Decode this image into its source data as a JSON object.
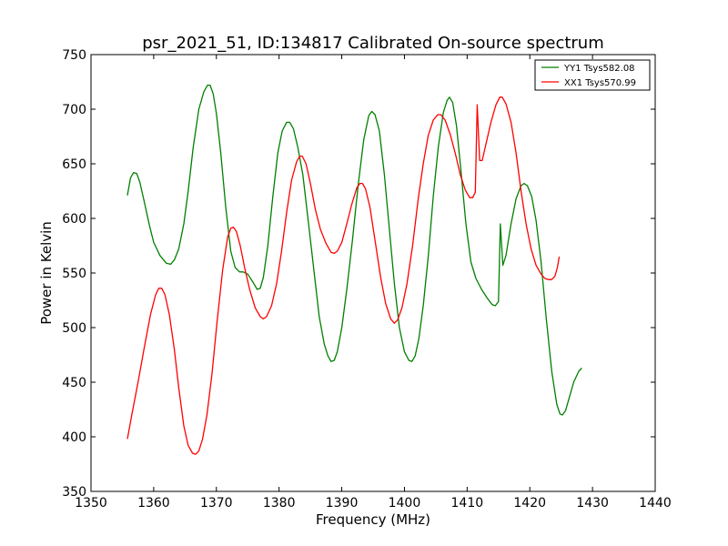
{
  "chart_data": {
    "type": "line",
    "title": "psr_2021_51, ID:134817 Calibrated On-source spectrum",
    "xlabel": "Frequency (MHz)",
    "ylabel": "Power in Kelvin",
    "xlim": [
      1350,
      1440
    ],
    "ylim": [
      350,
      750
    ],
    "xticks": [
      1350,
      1360,
      1370,
      1380,
      1390,
      1400,
      1410,
      1420,
      1430,
      1440
    ],
    "yticks": [
      350,
      400,
      450,
      500,
      550,
      600,
      650,
      700,
      750
    ],
    "grid": false,
    "legend_position": "top-right",
    "series": [
      {
        "name": "YY1 Tsys582.08",
        "color": "#008000",
        "points": [
          [
            1355.8,
            621
          ],
          [
            1356.3,
            637
          ],
          [
            1356.8,
            642
          ],
          [
            1357.3,
            641
          ],
          [
            1357.8,
            633
          ],
          [
            1358.5,
            615
          ],
          [
            1359.3,
            594
          ],
          [
            1360.0,
            578
          ],
          [
            1361.0,
            566
          ],
          [
            1362.0,
            559
          ],
          [
            1362.7,
            558
          ],
          [
            1363.3,
            562
          ],
          [
            1364.0,
            572
          ],
          [
            1364.8,
            595
          ],
          [
            1365.5,
            625
          ],
          [
            1366.3,
            665
          ],
          [
            1367.2,
            700
          ],
          [
            1368.0,
            716
          ],
          [
            1368.6,
            722
          ],
          [
            1369.0,
            722
          ],
          [
            1369.5,
            714
          ],
          [
            1370.0,
            696
          ],
          [
            1370.7,
            660
          ],
          [
            1371.5,
            610
          ],
          [
            1372.3,
            570
          ],
          [
            1373.0,
            555
          ],
          [
            1373.7,
            551
          ],
          [
            1374.3,
            551
          ],
          [
            1375.0,
            549
          ],
          [
            1375.8,
            542
          ],
          [
            1376.5,
            535
          ],
          [
            1377.0,
            536
          ],
          [
            1377.5,
            546
          ],
          [
            1378.2,
            575
          ],
          [
            1379.0,
            620
          ],
          [
            1379.8,
            660
          ],
          [
            1380.5,
            680
          ],
          [
            1381.2,
            688
          ],
          [
            1381.7,
            688
          ],
          [
            1382.3,
            682
          ],
          [
            1383.0,
            665
          ],
          [
            1383.8,
            640
          ],
          [
            1384.6,
            600
          ],
          [
            1385.5,
            555
          ],
          [
            1386.4,
            510
          ],
          [
            1387.2,
            485
          ],
          [
            1387.8,
            474
          ],
          [
            1388.3,
            469
          ],
          [
            1388.8,
            470
          ],
          [
            1389.3,
            478
          ],
          [
            1390.0,
            500
          ],
          [
            1390.8,
            535
          ],
          [
            1391.7,
            580
          ],
          [
            1392.6,
            630
          ],
          [
            1393.5,
            672
          ],
          [
            1394.3,
            694
          ],
          [
            1394.8,
            698
          ],
          [
            1395.3,
            695
          ],
          [
            1396.0,
            680
          ],
          [
            1396.8,
            640
          ],
          [
            1397.6,
            590
          ],
          [
            1398.4,
            540
          ],
          [
            1399.2,
            500
          ],
          [
            1400.0,
            478
          ],
          [
            1400.7,
            470
          ],
          [
            1401.2,
            469
          ],
          [
            1401.7,
            474
          ],
          [
            1402.3,
            490
          ],
          [
            1403.0,
            520
          ],
          [
            1403.8,
            565
          ],
          [
            1404.6,
            620
          ],
          [
            1405.4,
            665
          ],
          [
            1406.2,
            697
          ],
          [
            1406.8,
            708
          ],
          [
            1407.2,
            711
          ],
          [
            1407.7,
            706
          ],
          [
            1408.3,
            685
          ],
          [
            1409.0,
            645
          ],
          [
            1409.8,
            595
          ],
          [
            1410.6,
            560
          ],
          [
            1411.4,
            545
          ],
          [
            1412.3,
            535
          ],
          [
            1413.2,
            527
          ],
          [
            1414.0,
            521
          ],
          [
            1414.5,
            520
          ],
          [
            1415.0,
            524
          ],
          [
            1415.3,
            595
          ],
          [
            1415.7,
            557
          ],
          [
            1416.2,
            566
          ],
          [
            1417.0,
            595
          ],
          [
            1417.8,
            618
          ],
          [
            1418.6,
            630
          ],
          [
            1419.1,
            632
          ],
          [
            1419.6,
            630
          ],
          [
            1420.3,
            620
          ],
          [
            1421.0,
            598
          ],
          [
            1421.8,
            560
          ],
          [
            1422.6,
            510
          ],
          [
            1423.5,
            460
          ],
          [
            1424.3,
            430
          ],
          [
            1424.8,
            421
          ],
          [
            1425.2,
            420
          ],
          [
            1425.7,
            424
          ],
          [
            1426.3,
            436
          ],
          [
            1427.0,
            450
          ],
          [
            1427.8,
            460
          ],
          [
            1428.3,
            463
          ]
        ]
      },
      {
        "name": "XX1 Tsys570.99",
        "color": "#ff0000",
        "points": [
          [
            1355.8,
            398
          ],
          [
            1356.5,
            420
          ],
          [
            1357.5,
            450
          ],
          [
            1358.5,
            482
          ],
          [
            1359.5,
            512
          ],
          [
            1360.3,
            530
          ],
          [
            1360.8,
            536
          ],
          [
            1361.3,
            536
          ],
          [
            1361.8,
            530
          ],
          [
            1362.5,
            512
          ],
          [
            1363.3,
            480
          ],
          [
            1364.0,
            445
          ],
          [
            1364.8,
            410
          ],
          [
            1365.5,
            392
          ],
          [
            1366.2,
            385
          ],
          [
            1366.7,
            384
          ],
          [
            1367.2,
            387
          ],
          [
            1367.8,
            398
          ],
          [
            1368.5,
            420
          ],
          [
            1369.3,
            458
          ],
          [
            1370.1,
            505
          ],
          [
            1371.0,
            553
          ],
          [
            1371.8,
            583
          ],
          [
            1372.3,
            591
          ],
          [
            1372.7,
            592
          ],
          [
            1373.2,
            588
          ],
          [
            1373.8,
            575
          ],
          [
            1374.5,
            555
          ],
          [
            1375.3,
            535
          ],
          [
            1376.2,
            518
          ],
          [
            1377.0,
            510
          ],
          [
            1377.5,
            508
          ],
          [
            1378.0,
            510
          ],
          [
            1378.8,
            520
          ],
          [
            1379.6,
            540
          ],
          [
            1380.4,
            570
          ],
          [
            1381.2,
            605
          ],
          [
            1382.0,
            635
          ],
          [
            1382.8,
            652
          ],
          [
            1383.3,
            657
          ],
          [
            1383.7,
            657
          ],
          [
            1384.3,
            650
          ],
          [
            1385.0,
            632
          ],
          [
            1385.8,
            608
          ],
          [
            1386.6,
            590
          ],
          [
            1387.5,
            577
          ],
          [
            1388.3,
            569
          ],
          [
            1388.8,
            568
          ],
          [
            1389.3,
            570
          ],
          [
            1390.0,
            578
          ],
          [
            1390.8,
            595
          ],
          [
            1391.6,
            613
          ],
          [
            1392.4,
            628
          ],
          [
            1392.9,
            632
          ],
          [
            1393.3,
            632
          ],
          [
            1393.8,
            627
          ],
          [
            1394.5,
            610
          ],
          [
            1395.3,
            580
          ],
          [
            1396.2,
            546
          ],
          [
            1397.0,
            522
          ],
          [
            1397.8,
            508
          ],
          [
            1398.4,
            504
          ],
          [
            1398.9,
            507
          ],
          [
            1399.6,
            518
          ],
          [
            1400.4,
            540
          ],
          [
            1401.3,
            575
          ],
          [
            1402.2,
            618
          ],
          [
            1403.0,
            650
          ],
          [
            1403.8,
            676
          ],
          [
            1404.6,
            690
          ],
          [
            1405.3,
            695
          ],
          [
            1405.8,
            695
          ],
          [
            1406.5,
            690
          ],
          [
            1407.3,
            677
          ],
          [
            1408.1,
            660
          ],
          [
            1408.9,
            640
          ],
          [
            1409.7,
            626
          ],
          [
            1410.4,
            619
          ],
          [
            1410.9,
            619
          ],
          [
            1411.3,
            624
          ],
          [
            1411.6,
            704
          ],
          [
            1412.0,
            653
          ],
          [
            1412.4,
            653
          ],
          [
            1413.0,
            668
          ],
          [
            1413.8,
            688
          ],
          [
            1414.6,
            704
          ],
          [
            1415.2,
            711
          ],
          [
            1415.6,
            711
          ],
          [
            1416.2,
            705
          ],
          [
            1417.0,
            688
          ],
          [
            1417.8,
            660
          ],
          [
            1418.6,
            625
          ],
          [
            1419.4,
            595
          ],
          [
            1420.2,
            572
          ],
          [
            1421.0,
            557
          ],
          [
            1421.8,
            549
          ],
          [
            1422.4,
            545
          ],
          [
            1423.0,
            544
          ],
          [
            1423.5,
            544
          ],
          [
            1424.0,
            547
          ],
          [
            1424.4,
            555
          ],
          [
            1424.7,
            565
          ]
        ]
      }
    ]
  }
}
